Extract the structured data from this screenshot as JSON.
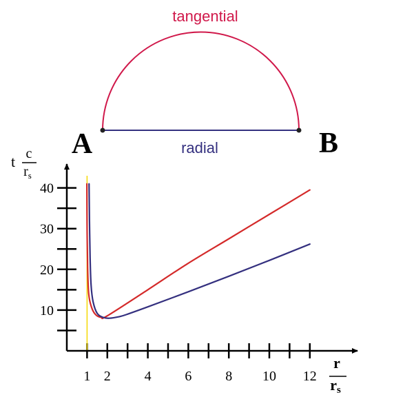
{
  "diagram": {
    "point_a_label": "A",
    "point_b_label": "B",
    "tangential_label": "tangential",
    "radial_label": "radial",
    "tangential_color": "#d0184a",
    "radial_color": "#34307f",
    "point_color": "#222222"
  },
  "chart_data": {
    "type": "line",
    "ylabel": {
      "prefix": "t",
      "numerator": "c",
      "denominator": "r",
      "denominator_sub": "s"
    },
    "xlabel": {
      "numerator": "r",
      "denominator": "r",
      "denominator_sub": "s"
    },
    "xlim": [
      0,
      13.3
    ],
    "ylim": [
      0,
      43
    ],
    "x_major_ticks": [
      1,
      2,
      3,
      4,
      5,
      6,
      7,
      8,
      9,
      10,
      11,
      12
    ],
    "x_tick_labels": [
      {
        "x": 1,
        "label": "1"
      },
      {
        "x": 2,
        "label": "2"
      },
      {
        "x": 4,
        "label": "4"
      },
      {
        "x": 6,
        "label": "6"
      },
      {
        "x": 8,
        "label": "8"
      },
      {
        "x": 10,
        "label": "10"
      },
      {
        "x": 12,
        "label": "12"
      }
    ],
    "y_major_ticks": [
      5,
      10,
      15,
      20,
      25,
      30,
      35,
      40
    ],
    "y_tick_labels": [
      {
        "y": 10,
        "label": "10"
      },
      {
        "y": 20,
        "label": "20"
      },
      {
        "y": 30,
        "label": "30"
      },
      {
        "y": 40,
        "label": "40"
      }
    ],
    "vertical_line": {
      "x": 1,
      "color": "#f5d800"
    },
    "series": [
      {
        "color": "#d42a2a",
        "points": [
          [
            0.99,
            41
          ],
          [
            1.0,
            30
          ],
          [
            1.03,
            20
          ],
          [
            1.08,
            14
          ],
          [
            1.2,
            11
          ],
          [
            1.4,
            9
          ],
          [
            1.7,
            8.2
          ],
          [
            2.0,
            8.6
          ],
          [
            4,
            15
          ],
          [
            6,
            21.5
          ],
          [
            8,
            27.5
          ],
          [
            10,
            33.5
          ],
          [
            12,
            39.5
          ]
        ]
      },
      {
        "color": "#34307f",
        "points": [
          [
            1.1,
            41
          ],
          [
            1.12,
            32
          ],
          [
            1.15,
            23
          ],
          [
            1.2,
            16
          ],
          [
            1.3,
            12
          ],
          [
            1.5,
            9.2
          ],
          [
            1.8,
            8.2
          ],
          [
            2.1,
            8
          ],
          [
            2.6,
            8.4
          ],
          [
            3,
            9
          ],
          [
            4,
            10.8
          ],
          [
            6,
            14.5
          ],
          [
            8,
            18.3
          ],
          [
            10,
            22.2
          ],
          [
            12,
            26.2
          ]
        ]
      }
    ]
  }
}
